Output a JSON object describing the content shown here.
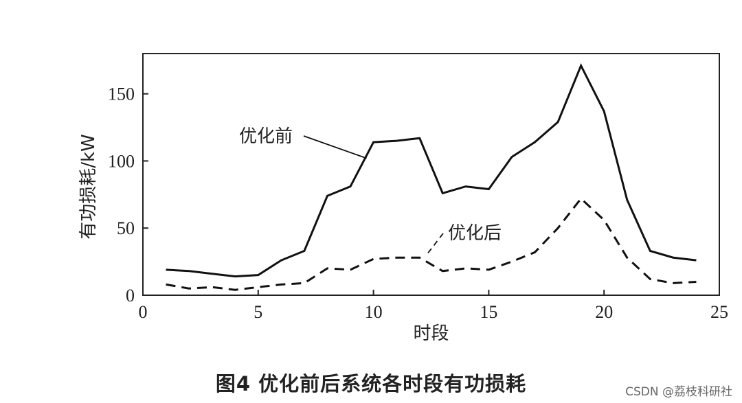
{
  "chart_data": {
    "type": "line",
    "xlabel": "时段",
    "ylabel": "有功损耗/kW",
    "xlim": [
      0,
      25
    ],
    "ylim": [
      0,
      180
    ],
    "xticks": [
      0,
      5,
      10,
      15,
      20,
      25
    ],
    "yticks": [
      0,
      50,
      100,
      150
    ],
    "grid": false,
    "legend": "inline annotations",
    "x": [
      1,
      2,
      3,
      4,
      5,
      6,
      7,
      8,
      9,
      10,
      11,
      12,
      13,
      14,
      15,
      16,
      17,
      18,
      19,
      20,
      21,
      22,
      23,
      24
    ],
    "series": [
      {
        "name": "优化前",
        "style": "solid",
        "values": [
          19,
          18,
          16,
          14,
          15,
          26,
          33,
          74,
          81,
          114,
          115,
          117,
          76,
          81,
          79,
          103,
          114,
          129,
          171,
          137,
          71,
          33,
          28,
          26
        ]
      },
      {
        "name": "优化后",
        "style": "dashed",
        "values": [
          8,
          5,
          6,
          4,
          6,
          8,
          9,
          20,
          19,
          27,
          28,
          28,
          18,
          20,
          19,
          25,
          32,
          50,
          72,
          56,
          28,
          12,
          9,
          10
        ]
      }
    ],
    "annotations": [
      {
        "text": "优化前",
        "series": 0
      },
      {
        "text": "优化后",
        "series": 1
      }
    ]
  },
  "caption": "图4    优化前后系统各时段有功损耗",
  "watermark": "CSDN @荔枝科研社"
}
